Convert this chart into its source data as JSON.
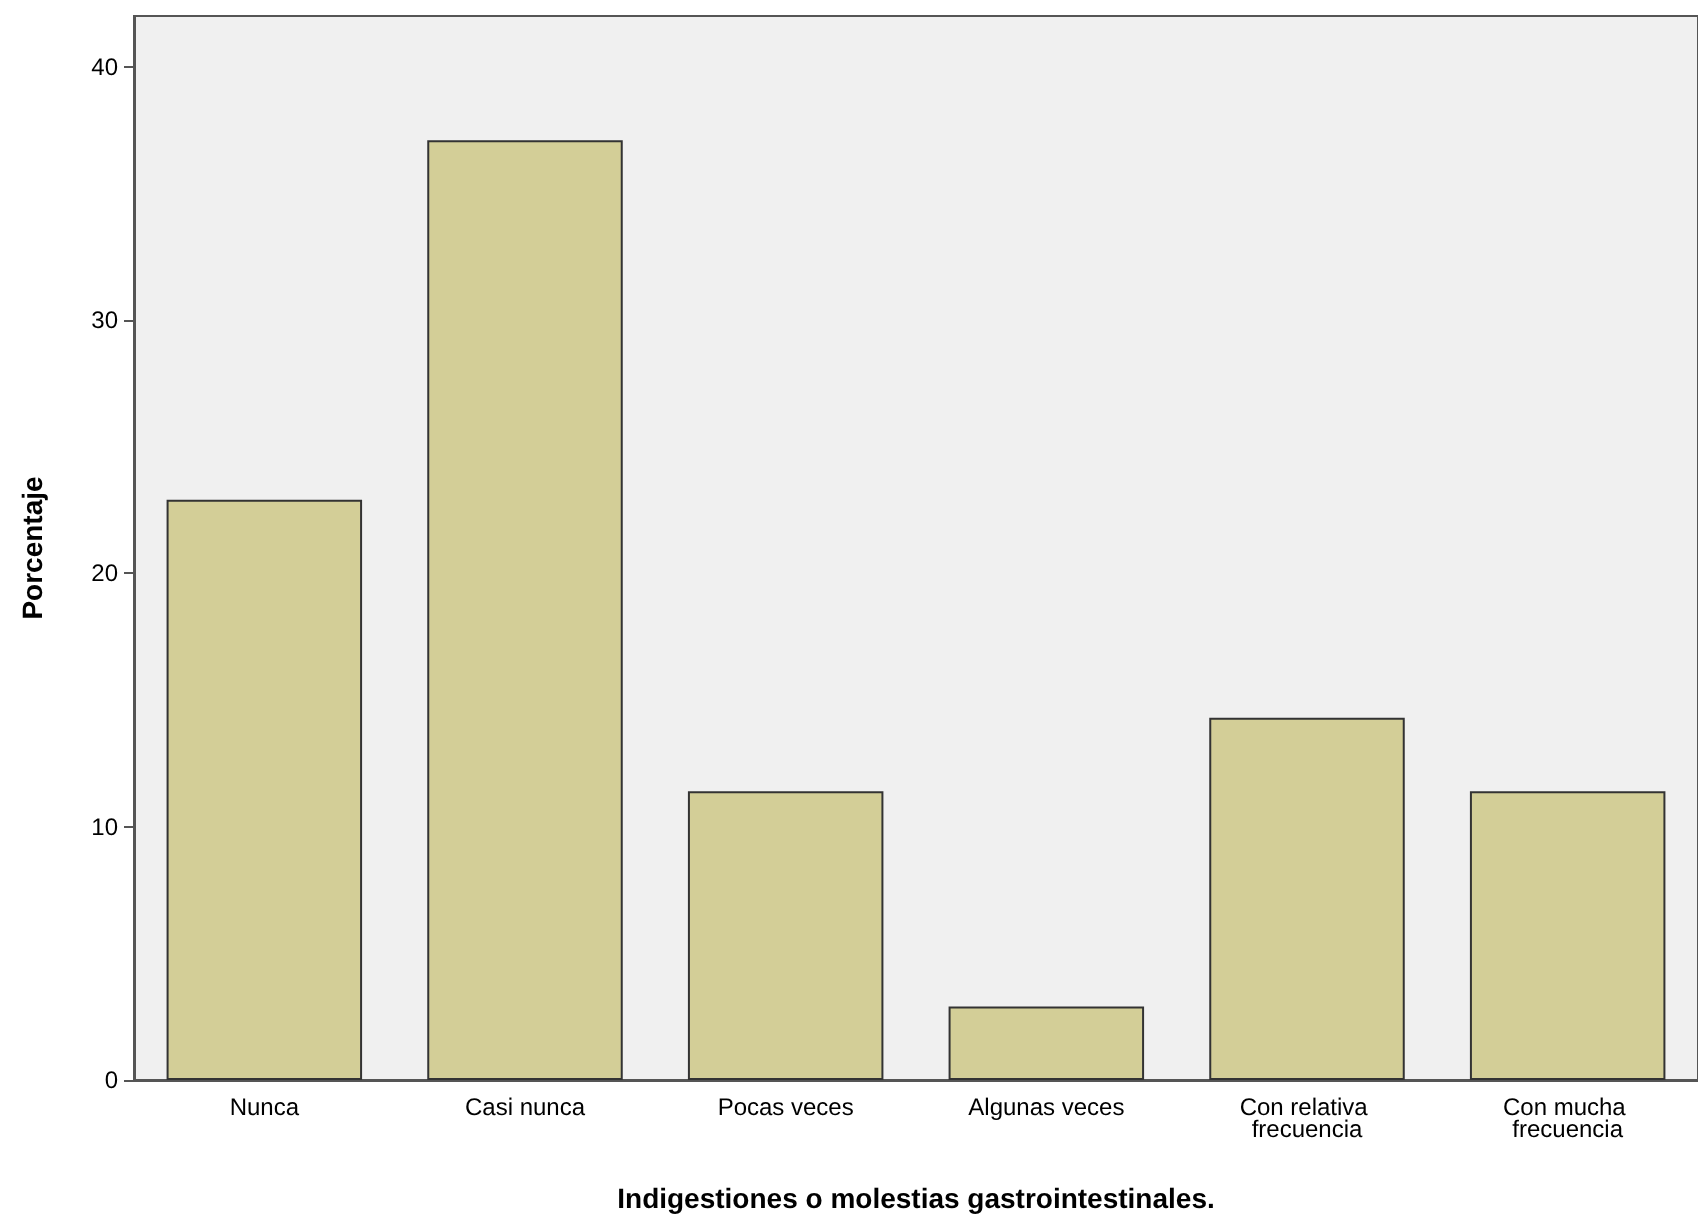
{
  "chart_data": {
    "type": "bar",
    "xlabel": "Indigestiones o molestias gastrointestinales.",
    "ylabel": "Porcentaje",
    "categories": [
      "Nunca",
      "Casi nunca",
      "Pocas veces",
      "Algunas veces",
      "Con relativa frecuencia",
      "Con mucha frecuencia"
    ],
    "values": [
      22.9,
      37.1,
      11.4,
      2.9,
      14.3,
      11.4
    ],
    "color": "#d3ce97",
    "ylim": [
      0,
      42
    ],
    "yticks": [
      0,
      10,
      20,
      30,
      40
    ],
    "grid": false
  }
}
